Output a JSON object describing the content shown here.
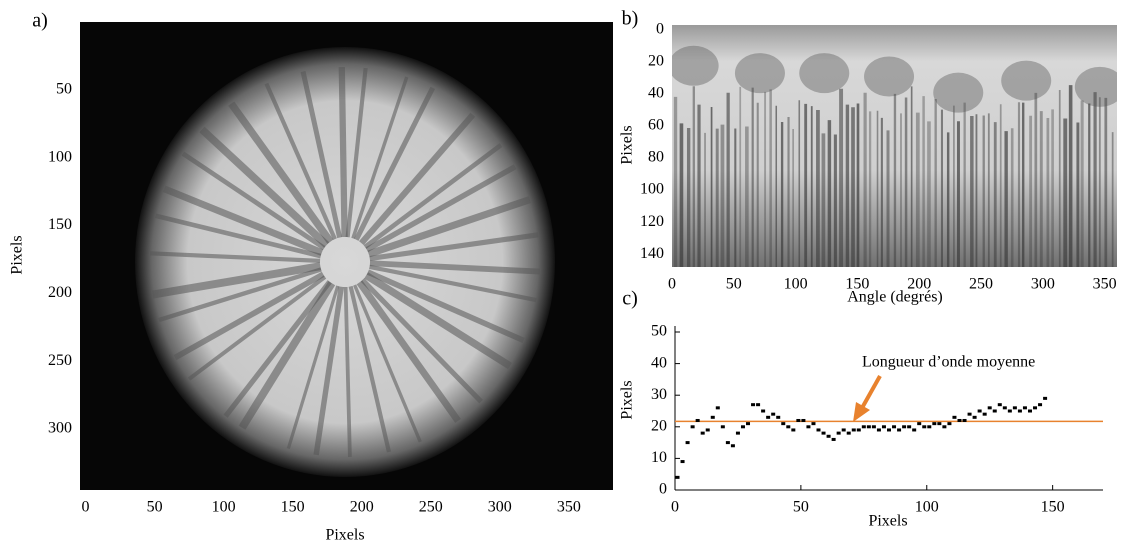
{
  "chart_data": [
    {
      "type": "image",
      "panel_label": "a)",
      "xlabel": "Pixels",
      "ylabel": "Pixels",
      "xlim": [
        -4,
        382
      ],
      "ylim": [
        345,
        0
      ],
      "xticks": [
        0,
        50,
        100,
        150,
        200,
        250,
        300,
        350
      ],
      "yticks": [
        50,
        100,
        150,
        200,
        250,
        300
      ]
    },
    {
      "type": "image",
      "panel_label": "b)",
      "xlabel": "Angle (degrés)",
      "ylabel": "Pixels",
      "xlim": [
        0,
        360
      ],
      "ylim": [
        148,
        -3
      ],
      "xticks": [
        0,
        50,
        100,
        150,
        200,
        250,
        300,
        350
      ],
      "yticks": [
        0,
        20,
        40,
        60,
        80,
        100,
        120,
        140
      ]
    },
    {
      "type": "scatter",
      "panel_label": "c)",
      "xlabel": "Pixels",
      "ylabel": "Pixels",
      "xlim": [
        0,
        170
      ],
      "ylim": [
        0,
        50
      ],
      "xticks": [
        0,
        50,
        100,
        150
      ],
      "yticks": [
        0,
        10,
        20,
        30,
        40,
        50
      ],
      "hline": {
        "value": 21.7,
        "color": "#e8822e"
      },
      "annotation": "Longueur d’onde moyenne",
      "series": [
        {
          "color": "#000000",
          "x": [
            1,
            3,
            5,
            7,
            9,
            11,
            13,
            15,
            17,
            19,
            21,
            23,
            25,
            27,
            29,
            31,
            33,
            35,
            37,
            39,
            41,
            43,
            45,
            47,
            49,
            51,
            53,
            55,
            57,
            59,
            61,
            63,
            65,
            67,
            69,
            71,
            73,
            75,
            77,
            79,
            81,
            83,
            85,
            87,
            89,
            91,
            93,
            95,
            97,
            99,
            101,
            103,
            105,
            107,
            109,
            111,
            113,
            115,
            117,
            119,
            121,
            123,
            125,
            127,
            129,
            131,
            133,
            135,
            137,
            139,
            141,
            143,
            145,
            147
          ],
          "values": [
            4,
            9,
            15,
            20,
            22,
            18,
            19,
            23,
            26,
            20,
            15,
            14,
            18,
            20,
            21,
            27,
            27,
            25,
            23,
            24,
            23,
            21,
            20,
            19,
            22,
            22,
            20,
            21,
            19,
            18,
            17,
            16,
            18,
            19,
            18,
            19,
            19,
            20,
            20,
            20,
            19,
            20,
            19,
            20,
            19,
            20,
            20,
            19,
            21,
            20,
            20,
            21,
            21,
            20,
            21,
            23,
            22,
            22,
            24,
            23,
            25,
            24,
            26,
            25,
            27,
            26,
            25,
            26,
            25,
            26,
            25,
            26,
            27,
            29
          ]
        }
      ]
    }
  ]
}
